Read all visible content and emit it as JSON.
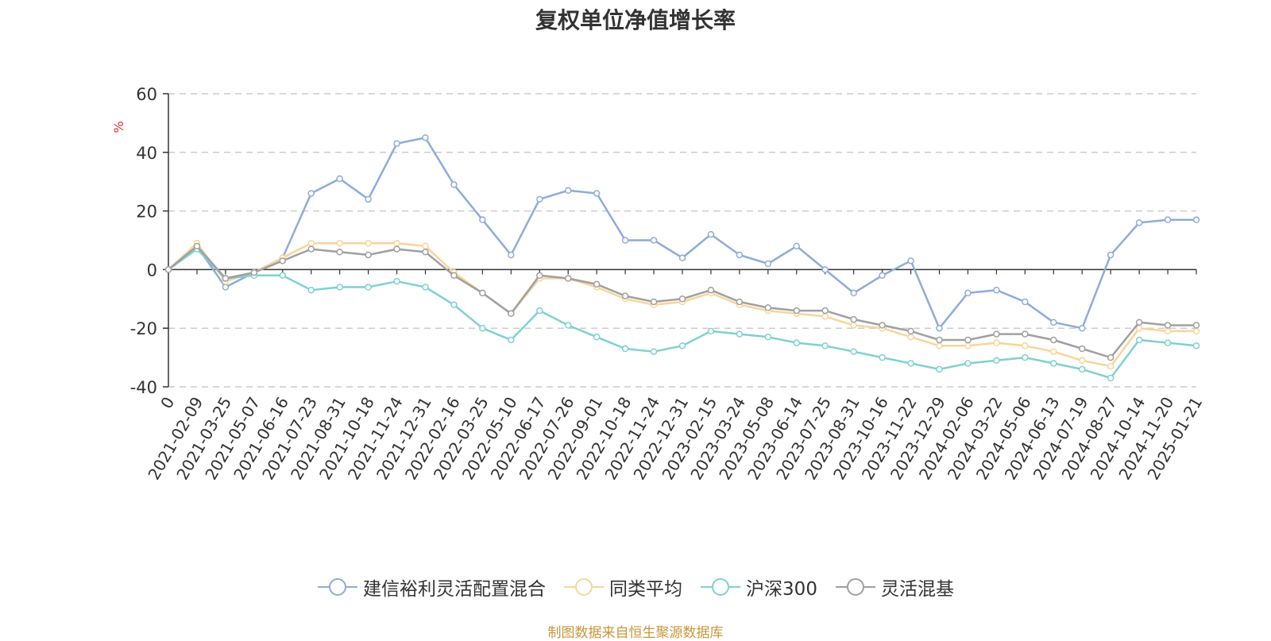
{
  "chart_data": {
    "type": "line",
    "title": "复权单位净值增长率",
    "ylabel": "%",
    "ylim": [
      -40,
      60
    ],
    "yticks": [
      -40,
      -20,
      0,
      20,
      40,
      60
    ],
    "grid": true,
    "legend_position": "bottom",
    "x_labels": [
      "0",
      "2021-02-09",
      "2021-03-25",
      "2021-05-07",
      "2021-06-16",
      "2021-07-23",
      "2021-08-31",
      "2021-10-18",
      "2021-11-24",
      "2021-12-31",
      "2022-02-16",
      "2022-03-25",
      "2022-05-10",
      "2022-06-17",
      "2022-07-26",
      "2022-09-01",
      "2022-10-18",
      "2022-11-24",
      "2022-12-31",
      "2023-02-15",
      "2023-03-24",
      "2023-05-08",
      "2023-06-14",
      "2023-07-25",
      "2023-08-31",
      "2023-10-16",
      "2023-11-22",
      "2023-12-29",
      "2024-02-06",
      "2024-03-22",
      "2024-05-06",
      "2024-06-13",
      "2024-07-19",
      "2024-08-27",
      "2024-10-14",
      "2024-11-20",
      "2025-01-21"
    ],
    "series": [
      {
        "name": "建信裕利灵活配置混合",
        "color": "#8eacd9",
        "values": [
          0,
          8,
          -6,
          -1,
          4,
          26,
          31,
          24,
          43,
          45,
          29,
          17,
          5,
          24,
          27,
          26,
          10,
          10,
          4,
          12,
          5,
          2,
          8,
          0,
          -8,
          -2,
          3,
          -20,
          -8,
          -7,
          -11,
          -18,
          -20,
          5,
          16,
          17,
          17
        ]
      },
      {
        "name": "同类平均",
        "color": "#f8d59a",
        "values": [
          0,
          9,
          -4,
          -1,
          4,
          9,
          9,
          9,
          9,
          8,
          -1,
          -8,
          -15,
          -3,
          -3,
          -6,
          -10,
          -12,
          -11,
          -8,
          -12,
          -14,
          -15,
          -16,
          -19,
          -20,
          -23,
          -26,
          -26,
          -25,
          -26,
          -28,
          -31,
          -33,
          -20,
          -21,
          -21
        ]
      },
      {
        "name": "沪深300",
        "color": "#7fd1d1",
        "values": [
          0,
          7,
          -3,
          -2,
          -2,
          -7,
          -6,
          -6,
          -4,
          -6,
          -12,
          -20,
          -24,
          -14,
          -19,
          -23,
          -27,
          -28,
          -26,
          -21,
          -22,
          -23,
          -25,
          -26,
          -28,
          -30,
          -32,
          -34,
          -32,
          -31,
          -30,
          -32,
          -34,
          -37,
          -24,
          -25,
          -26
        ]
      },
      {
        "name": "灵活混基",
        "color": "#a0a0a0",
        "values": [
          0,
          8,
          -3,
          -1,
          3,
          7,
          6,
          5,
          7,
          6,
          -2,
          -8,
          -15,
          -2,
          -3,
          -5,
          -9,
          -11,
          -10,
          -7,
          -11,
          -13,
          -14,
          -14,
          -17,
          -19,
          -21,
          -24,
          -24,
          -22,
          -22,
          -24,
          -27,
          -30,
          -18,
          -19,
          -19
        ]
      }
    ]
  },
  "footer": {
    "source": "制图数据来自恒生聚源数据库"
  }
}
